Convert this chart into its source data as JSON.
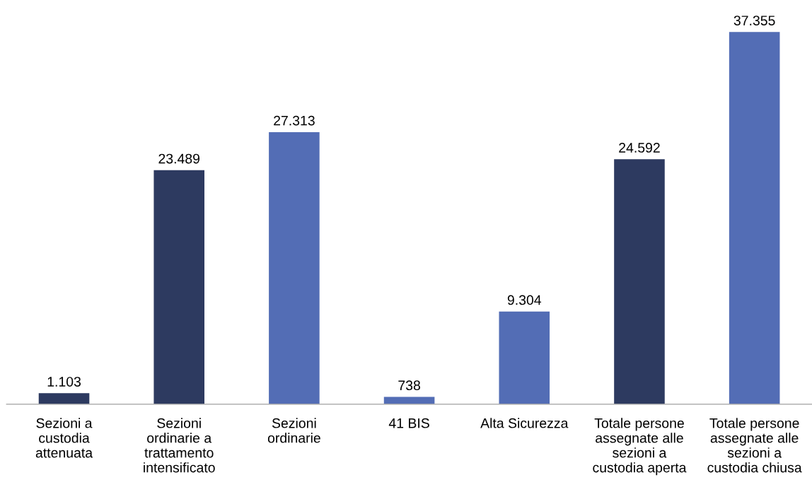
{
  "chart_data": {
    "type": "bar",
    "categories": [
      "Sezioni a custodia attenuata",
      "Sezioni ordinarie a trattamento intensificato",
      "Sezioni ordinarie",
      "41 BIS",
      "Alta Sicurezza",
      "Totale persone assegnate alle sezioni a custodia aperta",
      "Totale persone assegnate alle sezioni a custodia chiusa"
    ],
    "values": [
      1103,
      23489,
      27313,
      738,
      9304,
      24592,
      37355
    ],
    "colors": [
      "#2d3a60",
      "#2d3a60",
      "#536db5",
      "#536db5",
      "#536db5",
      "#2d3a60",
      "#536db5"
    ],
    "value_labels": [
      "1.103",
      "23.489",
      "27.313",
      "738",
      "9.304",
      "24.592",
      "37.355"
    ],
    "grid": false,
    "legend": false
  }
}
